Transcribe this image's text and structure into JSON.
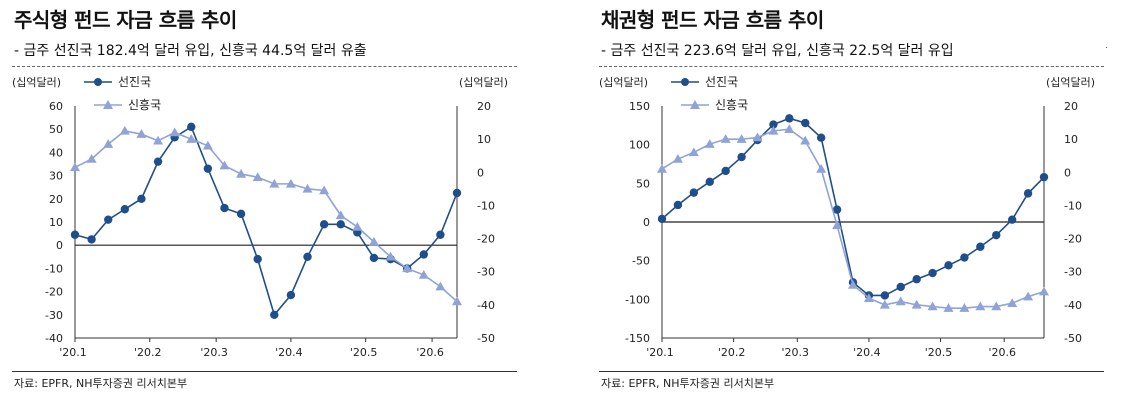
{
  "panels": [
    {
      "title": "주식형 펀드 자금 흐름 추이",
      "subtitle": "- 금주 선진국 182.4억 달러 유입, 신흥국 44.5억 달러 유출",
      "source": "자료: EPFR, NH투자증권 리서치본부"
    },
    {
      "title": "채권형 펀드 자금 흐름 추이",
      "subtitle": "- 금주 선진국 223.6억 달러 유입, 신흥국 22.5억 달러 유입",
      "source": "자료: EPFR, NH투자증권 리서치본부"
    }
  ],
  "chart_data": [
    {
      "type": "line",
      "left_unit": "(십억달러)",
      "right_unit": "(십억달러)",
      "x_ticks": [
        "'20.1",
        "'20.2",
        "'20.3",
        "'20.4",
        "'20.5",
        "'20.6"
      ],
      "x_tick_week_index": [
        0,
        4.5,
        8.5,
        13,
        17.5,
        21.5
      ],
      "y_left": {
        "min": -40,
        "max": 60,
        "step": 10
      },
      "y_right": {
        "min": -50,
        "max": 20,
        "step": 10
      },
      "legend_position": "top-left",
      "series": [
        {
          "name": "선진국",
          "axis": "left",
          "color": "#1f4e8c",
          "marker": "circle",
          "values": [
            4.5,
            2.5,
            11,
            15.5,
            20,
            36,
            46.5,
            51,
            33,
            16,
            13.5,
            -6,
            -30,
            -21.5,
            -5,
            9,
            9,
            5.5,
            -5.5,
            -6,
            -10,
            -4,
            4.5,
            22.5
          ]
        },
        {
          "name": "신흥국",
          "axis": "right",
          "color": "#8fa3d6",
          "marker": "triangle",
          "values": [
            1.5,
            4,
            8.5,
            12.5,
            11.5,
            9.5,
            12,
            10,
            8,
            2,
            -0.5,
            -1.5,
            -3.5,
            -3.5,
            -5,
            -5.5,
            -13,
            -16.5,
            -21,
            -25.5,
            -29,
            -31,
            -34.5,
            -39
          ]
        }
      ]
    },
    {
      "type": "line",
      "left_unit": "(십억달러)",
      "right_unit": "(십억달러)",
      "x_ticks": [
        "'20.1",
        "'20.2",
        "'20.3",
        "'20.4",
        "'20.5",
        "'20.6"
      ],
      "x_tick_week_index": [
        0,
        4.5,
        8.5,
        13,
        17.5,
        21.5
      ],
      "y_left": {
        "min": -150,
        "max": 150,
        "step": 50
      },
      "y_right": {
        "min": -50,
        "max": 20,
        "step": 10
      },
      "legend_position": "top-left",
      "series": [
        {
          "name": "선진국",
          "axis": "left",
          "color": "#1f4e8c",
          "marker": "circle",
          "values": [
            4,
            22,
            38,
            52,
            66,
            84,
            106,
            126,
            134,
            128,
            109,
            16,
            -78,
            -95,
            -95,
            -84,
            -74,
            -66,
            -56,
            -46,
            -32,
            -17,
            3,
            37,
            58
          ]
        },
        {
          "name": "신흥국",
          "axis": "right",
          "color": "#8fa3d6",
          "marker": "triangle",
          "values": [
            1,
            4,
            6,
            8.5,
            10,
            10,
            10.5,
            12.5,
            13,
            9.5,
            1,
            -16,
            -34,
            -38,
            -40,
            -39,
            -40,
            -40.5,
            -41,
            -41,
            -40.5,
            -40.5,
            -39.5,
            -37.5,
            -36
          ]
        }
      ]
    }
  ]
}
